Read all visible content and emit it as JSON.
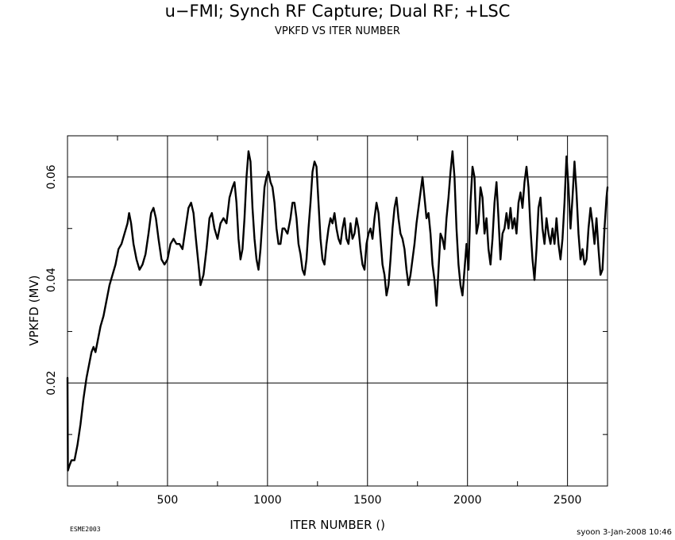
{
  "chart_data": {
    "type": "line",
    "title": "u−FMI; Synch RF Capture; Dual RF; +LSC",
    "subtitle": "VPKFD VS ITER NUMBER",
    "xlabel": "ITER NUMBER ()",
    "ylabel": "VPKFD (MV)",
    "xlim": [
      0,
      2700
    ],
    "ylim": [
      0.0,
      0.068
    ],
    "xticks": [
      500,
      1000,
      1500,
      2000,
      2500
    ],
    "yticks": [
      0.02,
      0.04,
      0.06
    ],
    "ytick_labels": [
      "0.02",
      "0.04",
      "0.06"
    ],
    "grid": true,
    "footer_left": "ESME2003",
    "footer_right": "syoon   3-Jan-2008 10:46",
    "series": [
      {
        "color": "#000000",
        "points": [
          [
            0,
            0.021
          ],
          [
            2,
            0.003
          ],
          [
            10,
            0.004
          ],
          [
            20,
            0.005
          ],
          [
            35,
            0.005
          ],
          [
            50,
            0.008
          ],
          [
            65,
            0.012
          ],
          [
            80,
            0.017
          ],
          [
            95,
            0.021
          ],
          [
            110,
            0.024
          ],
          [
            120,
            0.026
          ],
          [
            130,
            0.027
          ],
          [
            140,
            0.026
          ],
          [
            150,
            0.028
          ],
          [
            165,
            0.031
          ],
          [
            180,
            0.033
          ],
          [
            195,
            0.036
          ],
          [
            210,
            0.039
          ],
          [
            225,
            0.041
          ],
          [
            240,
            0.043
          ],
          [
            255,
            0.046
          ],
          [
            270,
            0.047
          ],
          [
            285,
            0.049
          ],
          [
            300,
            0.051
          ],
          [
            308,
            0.053
          ],
          [
            318,
            0.051
          ],
          [
            330,
            0.047
          ],
          [
            345,
            0.044
          ],
          [
            360,
            0.042
          ],
          [
            375,
            0.043
          ],
          [
            390,
            0.045
          ],
          [
            405,
            0.049
          ],
          [
            418,
            0.053
          ],
          [
            430,
            0.054
          ],
          [
            442,
            0.052
          ],
          [
            455,
            0.048
          ],
          [
            470,
            0.044
          ],
          [
            485,
            0.043
          ],
          [
            500,
            0.044
          ],
          [
            515,
            0.047
          ],
          [
            530,
            0.048
          ],
          [
            545,
            0.047
          ],
          [
            560,
            0.047
          ],
          [
            575,
            0.046
          ],
          [
            590,
            0.05
          ],
          [
            605,
            0.054
          ],
          [
            618,
            0.055
          ],
          [
            630,
            0.053
          ],
          [
            642,
            0.048
          ],
          [
            655,
            0.043
          ],
          [
            665,
            0.039
          ],
          [
            680,
            0.041
          ],
          [
            695,
            0.046
          ],
          [
            710,
            0.052
          ],
          [
            722,
            0.053
          ],
          [
            735,
            0.05
          ],
          [
            750,
            0.048
          ],
          [
            765,
            0.051
          ],
          [
            780,
            0.052
          ],
          [
            795,
            0.051
          ],
          [
            810,
            0.056
          ],
          [
            825,
            0.058
          ],
          [
            835,
            0.059
          ],
          [
            845,
            0.055
          ],
          [
            855,
            0.048
          ],
          [
            865,
            0.044
          ],
          [
            875,
            0.046
          ],
          [
            885,
            0.052
          ],
          [
            895,
            0.06
          ],
          [
            905,
            0.065
          ],
          [
            915,
            0.063
          ],
          [
            925,
            0.054
          ],
          [
            935,
            0.048
          ],
          [
            945,
            0.044
          ],
          [
            955,
            0.042
          ],
          [
            965,
            0.046
          ],
          [
            975,
            0.052
          ],
          [
            985,
            0.058
          ],
          [
            995,
            0.06
          ],
          [
            1005,
            0.061
          ],
          [
            1015,
            0.059
          ],
          [
            1025,
            0.058
          ],
          [
            1035,
            0.055
          ],
          [
            1045,
            0.05
          ],
          [
            1055,
            0.047
          ],
          [
            1065,
            0.047
          ],
          [
            1075,
            0.05
          ],
          [
            1085,
            0.05
          ],
          [
            1100,
            0.049
          ],
          [
            1115,
            0.052
          ],
          [
            1125,
            0.055
          ],
          [
            1135,
            0.055
          ],
          [
            1145,
            0.052
          ],
          [
            1155,
            0.047
          ],
          [
            1165,
            0.045
          ],
          [
            1175,
            0.042
          ],
          [
            1185,
            0.041
          ],
          [
            1195,
            0.044
          ],
          [
            1205,
            0.05
          ],
          [
            1215,
            0.055
          ],
          [
            1225,
            0.061
          ],
          [
            1235,
            0.063
          ],
          [
            1245,
            0.062
          ],
          [
            1255,
            0.055
          ],
          [
            1265,
            0.048
          ],
          [
            1275,
            0.044
          ],
          [
            1285,
            0.043
          ],
          [
            1295,
            0.047
          ],
          [
            1305,
            0.05
          ],
          [
            1315,
            0.052
          ],
          [
            1325,
            0.051
          ],
          [
            1335,
            0.053
          ],
          [
            1345,
            0.05
          ],
          [
            1355,
            0.048
          ],
          [
            1365,
            0.047
          ],
          [
            1375,
            0.05
          ],
          [
            1385,
            0.052
          ],
          [
            1395,
            0.048
          ],
          [
            1405,
            0.047
          ],
          [
            1415,
            0.051
          ],
          [
            1425,
            0.048
          ],
          [
            1435,
            0.049
          ],
          [
            1445,
            0.052
          ],
          [
            1455,
            0.05
          ],
          [
            1465,
            0.046
          ],
          [
            1475,
            0.043
          ],
          [
            1485,
            0.042
          ],
          [
            1495,
            0.047
          ],
          [
            1505,
            0.049
          ],
          [
            1515,
            0.05
          ],
          [
            1525,
            0.048
          ],
          [
            1535,
            0.052
          ],
          [
            1545,
            0.055
          ],
          [
            1555,
            0.053
          ],
          [
            1565,
            0.048
          ],
          [
            1575,
            0.043
          ],
          [
            1585,
            0.041
          ],
          [
            1595,
            0.037
          ],
          [
            1605,
            0.039
          ],
          [
            1615,
            0.044
          ],
          [
            1625,
            0.05
          ],
          [
            1635,
            0.054
          ],
          [
            1645,
            0.056
          ],
          [
            1655,
            0.052
          ],
          [
            1665,
            0.049
          ],
          [
            1675,
            0.048
          ],
          [
            1685,
            0.046
          ],
          [
            1695,
            0.042
          ],
          [
            1705,
            0.039
          ],
          [
            1715,
            0.041
          ],
          [
            1725,
            0.044
          ],
          [
            1735,
            0.047
          ],
          [
            1745,
            0.051
          ],
          [
            1755,
            0.054
          ],
          [
            1765,
            0.057
          ],
          [
            1775,
            0.06
          ],
          [
            1785,
            0.056
          ],
          [
            1795,
            0.052
          ],
          [
            1805,
            0.053
          ],
          [
            1815,
            0.049
          ],
          [
            1825,
            0.043
          ],
          [
            1835,
            0.04
          ],
          [
            1845,
            0.035
          ],
          [
            1855,
            0.042
          ],
          [
            1865,
            0.049
          ],
          [
            1875,
            0.048
          ],
          [
            1885,
            0.046
          ],
          [
            1895,
            0.052
          ],
          [
            1905,
            0.056
          ],
          [
            1915,
            0.061
          ],
          [
            1925,
            0.065
          ],
          [
            1935,
            0.06
          ],
          [
            1945,
            0.05
          ],
          [
            1955,
            0.043
          ],
          [
            1965,
            0.039
          ],
          [
            1975,
            0.037
          ],
          [
            1985,
            0.042
          ],
          [
            1995,
            0.047
          ],
          [
            2005,
            0.042
          ],
          [
            2015,
            0.055
          ],
          [
            2025,
            0.062
          ],
          [
            2035,
            0.06
          ],
          [
            2045,
            0.049
          ],
          [
            2055,
            0.051
          ],
          [
            2065,
            0.058
          ],
          [
            2075,
            0.056
          ],
          [
            2085,
            0.049
          ],
          [
            2095,
            0.052
          ],
          [
            2105,
            0.046
          ],
          [
            2115,
            0.043
          ],
          [
            2125,
            0.048
          ],
          [
            2135,
            0.055
          ],
          [
            2145,
            0.059
          ],
          [
            2155,
            0.052
          ],
          [
            2165,
            0.044
          ],
          [
            2175,
            0.049
          ],
          [
            2185,
            0.05
          ],
          [
            2195,
            0.053
          ],
          [
            2205,
            0.05
          ],
          [
            2215,
            0.054
          ],
          [
            2225,
            0.05
          ],
          [
            2235,
            0.052
          ],
          [
            2245,
            0.049
          ],
          [
            2255,
            0.055
          ],
          [
            2265,
            0.057
          ],
          [
            2275,
            0.054
          ],
          [
            2285,
            0.059
          ],
          [
            2295,
            0.062
          ],
          [
            2305,
            0.058
          ],
          [
            2315,
            0.05
          ],
          [
            2325,
            0.044
          ],
          [
            2335,
            0.04
          ],
          [
            2345,
            0.046
          ],
          [
            2355,
            0.054
          ],
          [
            2365,
            0.056
          ],
          [
            2375,
            0.05
          ],
          [
            2385,
            0.047
          ],
          [
            2395,
            0.052
          ],
          [
            2405,
            0.049
          ],
          [
            2415,
            0.047
          ],
          [
            2425,
            0.05
          ],
          [
            2435,
            0.047
          ],
          [
            2445,
            0.052
          ],
          [
            2455,
            0.047
          ],
          [
            2465,
            0.044
          ],
          [
            2475,
            0.048
          ],
          [
            2485,
            0.055
          ],
          [
            2495,
            0.064
          ],
          [
            2505,
            0.058
          ],
          [
            2515,
            0.05
          ],
          [
            2525,
            0.056
          ],
          [
            2535,
            0.063
          ],
          [
            2545,
            0.057
          ],
          [
            2555,
            0.049
          ],
          [
            2565,
            0.044
          ],
          [
            2575,
            0.046
          ],
          [
            2585,
            0.043
          ],
          [
            2595,
            0.044
          ],
          [
            2605,
            0.05
          ],
          [
            2615,
            0.054
          ],
          [
            2625,
            0.051
          ],
          [
            2635,
            0.047
          ],
          [
            2645,
            0.052
          ],
          [
            2655,
            0.046
          ],
          [
            2665,
            0.041
          ],
          [
            2675,
            0.042
          ],
          [
            2685,
            0.05
          ],
          [
            2695,
            0.056
          ],
          [
            2700,
            0.058
          ]
        ]
      }
    ]
  }
}
